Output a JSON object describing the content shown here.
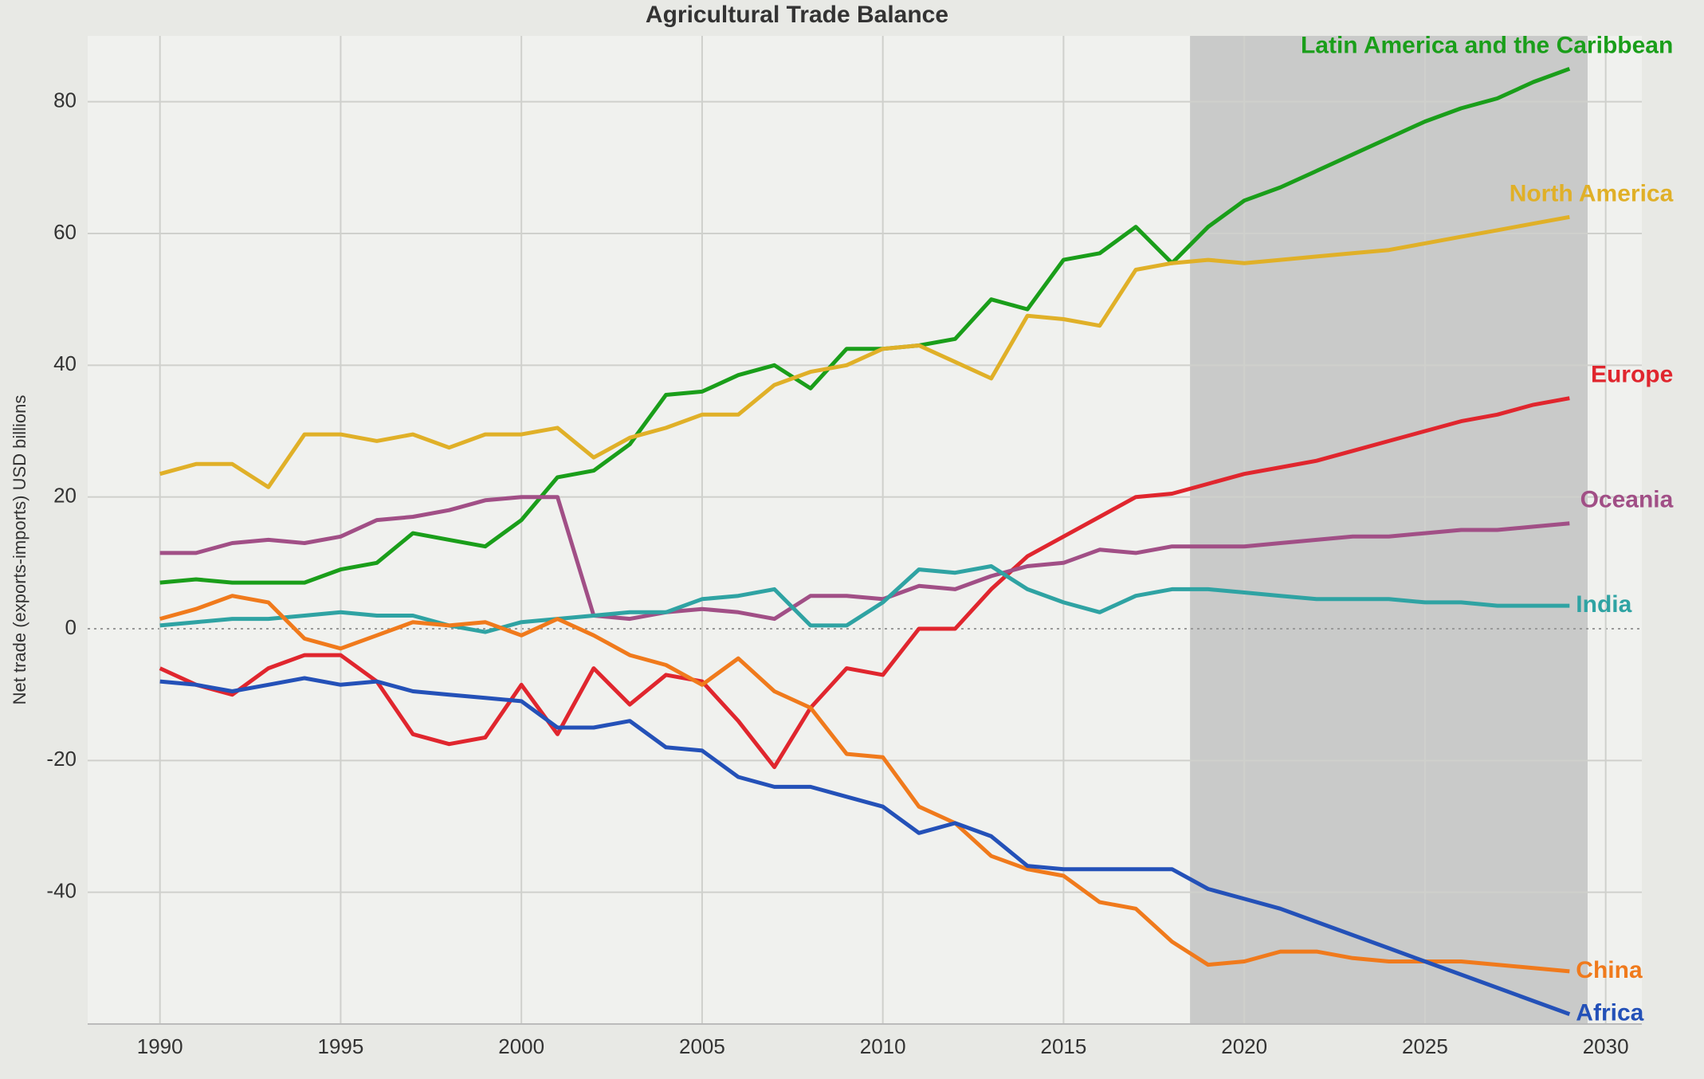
{
  "chart_data": {
    "type": "line",
    "title": "Agricultural Trade Balance",
    "y_label": "Net trade (exports-imports) USD billions",
    "x": [
      1990,
      1991,
      1992,
      1993,
      1994,
      1995,
      1996,
      1997,
      1998,
      1999,
      2000,
      2001,
      2002,
      2003,
      2004,
      2005,
      2006,
      2007,
      2008,
      2009,
      2010,
      2011,
      2012,
      2013,
      2014,
      2015,
      2016,
      2017,
      2018,
      2019,
      2020,
      2021,
      2022,
      2023,
      2024,
      2025,
      2026,
      2027,
      2028,
      2029
    ],
    "series": [
      {
        "name": "Latin America and the Caribbean",
        "color": "#1a9e1a",
        "values": [
          7,
          7.5,
          7,
          7,
          7,
          9,
          10,
          14.5,
          13.5,
          12.5,
          16.5,
          23,
          24,
          28,
          35.5,
          36,
          38.5,
          40,
          36.5,
          42.5,
          42.5,
          43,
          44,
          50,
          48.5,
          56,
          57,
          61,
          55.5,
          61,
          65,
          67,
          69.5,
          72,
          74.5,
          77,
          79,
          80.5,
          83,
          85
        ]
      },
      {
        "name": "North America",
        "color": "#e0b028",
        "values": [
          23.5,
          25,
          25,
          21.5,
          29.5,
          29.5,
          28.5,
          29.5,
          27.5,
          29.5,
          29.5,
          30.5,
          26,
          29,
          30.5,
          32.5,
          32.5,
          37,
          39,
          40,
          42.5,
          43,
          40.5,
          38,
          47.5,
          47,
          46,
          54.5,
          55.5,
          56,
          55.5,
          56,
          56.5,
          57,
          57.5,
          58.5,
          59.5,
          60.5,
          61.5,
          62.5
        ]
      },
      {
        "name": "Europe",
        "color": "#e0262e",
        "values": [
          -6,
          -8.5,
          -10,
          -6,
          -4,
          -4,
          -8,
          -16,
          -17.5,
          -16.5,
          -8.5,
          -16,
          -6,
          -11.5,
          -7,
          -8,
          -14,
          -21,
          -12,
          -6,
          -7,
          0,
          0,
          6,
          11,
          14,
          17,
          20,
          20.5,
          22,
          23.5,
          24.5,
          25.5,
          27,
          28.5,
          30,
          31.5,
          32.5,
          34,
          35
        ]
      },
      {
        "name": "Oceania",
        "color": "#a14f86",
        "values": [
          11.5,
          11.5,
          13,
          13.5,
          13,
          14,
          16.5,
          17,
          18,
          19.5,
          20,
          20,
          2,
          1.5,
          2.5,
          3,
          2.5,
          1.5,
          5,
          5,
          4.5,
          6.5,
          6,
          8,
          9.5,
          10,
          12,
          11.5,
          12.5,
          12.5,
          12.5,
          13,
          13.5,
          14,
          14,
          14.5,
          15,
          15,
          15.5,
          16
        ]
      },
      {
        "name": "India",
        "color": "#2fa3a3",
        "values": [
          0.5,
          1,
          1.5,
          1.5,
          2,
          2.5,
          2,
          2,
          0.5,
          -0.5,
          1,
          1.5,
          2,
          2.5,
          2.5,
          4.5,
          5,
          6,
          0.5,
          0.5,
          4,
          9,
          8.5,
          9.5,
          6,
          4,
          2.5,
          5,
          6,
          6,
          5.5,
          5,
          4.5,
          4.5,
          4.5,
          4,
          4,
          3.5,
          3.5,
          3.5
        ]
      },
      {
        "name": "China",
        "color": "#f07a1c",
        "values": [
          1.5,
          3,
          5,
          4,
          -1.5,
          -3,
          -1,
          1,
          0.5,
          1,
          -1,
          1.5,
          -1,
          -4,
          -5.5,
          -8.5,
          -4.5,
          -9.5,
          -12,
          -19,
          -19.5,
          -27,
          -29.5,
          -34.5,
          -36.5,
          -37.5,
          -41.5,
          -42.5,
          -47.5,
          -51,
          -50.5,
          -49,
          -49,
          -50,
          -50.5,
          -50.5,
          -50.5,
          -51,
          -51.5,
          -52
        ]
      },
      {
        "name": "Africa",
        "color": "#2451b8",
        "values": [
          -8,
          -8.5,
          -9.5,
          -8.5,
          -7.5,
          -8.5,
          -8,
          -9.5,
          -10,
          -10.5,
          -11,
          -15,
          -15,
          -14,
          -18,
          -18.5,
          -22.5,
          -24,
          -24,
          -25.5,
          -27,
          -31,
          -29.5,
          -31.5,
          -36,
          -36.5,
          -36.5,
          -36.5,
          -36.5,
          -39.5,
          -41,
          -42.5,
          -44.5,
          -46.5,
          -48.5,
          -50.5,
          -52.5,
          -54.5,
          -56.5,
          -58.5
        ]
      }
    ],
    "projection_span": [
      2018.5,
      2029.5
    ],
    "xlim": [
      1988,
      2031
    ],
    "xticks": [
      1990,
      1995,
      2000,
      2005,
      2010,
      2015,
      2020,
      2025,
      2030
    ],
    "ylim": [
      -60,
      90
    ],
    "yticks": [
      -40,
      -20,
      0,
      20,
      40,
      60,
      80
    ],
    "grid": true
  }
}
